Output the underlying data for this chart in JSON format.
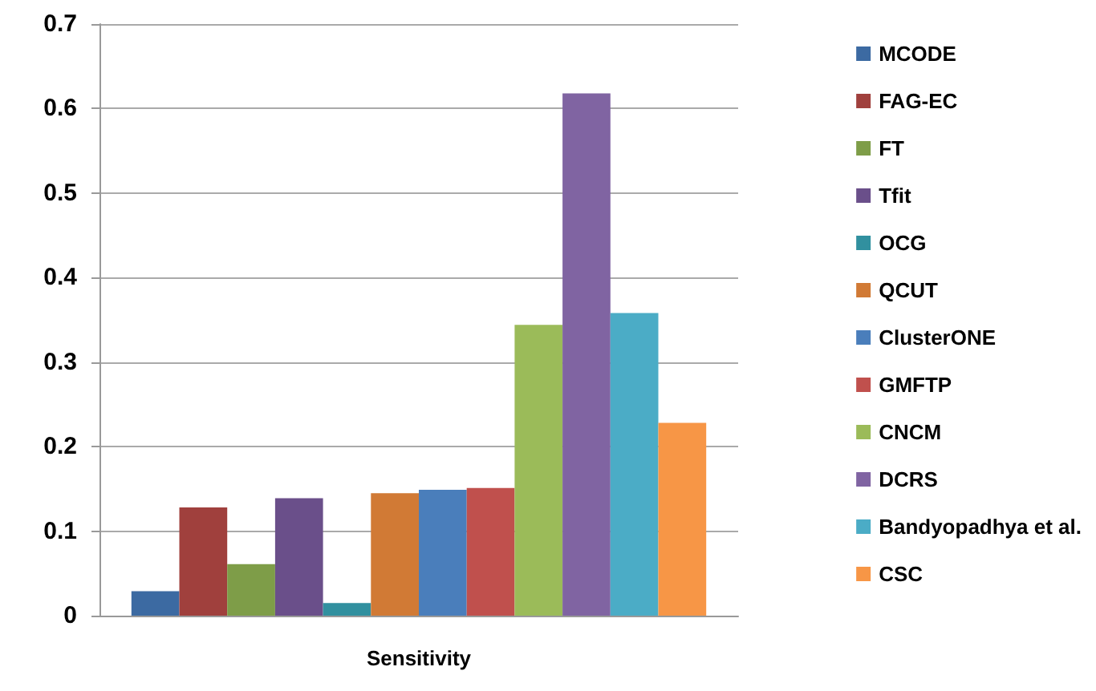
{
  "chart_data": {
    "type": "bar",
    "categories": [
      "Sensitivity"
    ],
    "series": [
      {
        "name": "MCODE",
        "color": "#3c6aa2",
        "values": [
          0.029
        ]
      },
      {
        "name": "FAG-EC",
        "color": "#a0403d",
        "values": [
          0.128
        ]
      },
      {
        "name": "FT",
        "color": "#7e9d48",
        "values": [
          0.061
        ]
      },
      {
        "name": "Tfit",
        "color": "#6a4f8a",
        "values": [
          0.139
        ]
      },
      {
        "name": "OCG",
        "color": "#31909f",
        "values": [
          0.015
        ]
      },
      {
        "name": "QCUT",
        "color": "#d17a35",
        "values": [
          0.145
        ]
      },
      {
        "name": "ClusterONE",
        "color": "#4a7ebb",
        "values": [
          0.149
        ]
      },
      {
        "name": "GMFTP",
        "color": "#c0504d",
        "values": [
          0.151
        ]
      },
      {
        "name": "CNCM",
        "color": "#9bbb59",
        "values": [
          0.344
        ]
      },
      {
        "name": "DCRS",
        "color": "#8064a2",
        "values": [
          0.618
        ]
      },
      {
        "name": "Bandyopadhya et al.",
        "color": "#4bacc6",
        "values": [
          0.358
        ]
      },
      {
        "name": "CSC",
        "color": "#f79646",
        "values": [
          0.228
        ]
      }
    ],
    "ylim": [
      0,
      0.7
    ],
    "yticks": [
      0,
      0.1,
      0.2,
      0.3,
      0.4,
      0.5,
      0.6,
      0.7
    ],
    "grid": "y",
    "legend": "right"
  }
}
